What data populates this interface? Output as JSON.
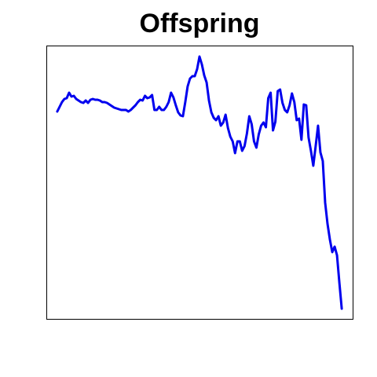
{
  "chart_data": {
    "type": "line",
    "title": "Offspring",
    "color": "#0000ee",
    "xlim": [
      -3.6,
      125.6
    ],
    "ylim": [
      0,
      348
    ],
    "series": [
      {
        "color": "#0000ee",
        "values": [
          264,
          270,
          276,
          280,
          281,
          288,
          283,
          284,
          280,
          278,
          276,
          275,
          278,
          275,
          279,
          280,
          279,
          279,
          278,
          276,
          276,
          275,
          273,
          271,
          269,
          268,
          267,
          266,
          266,
          266,
          264,
          266,
          269,
          272,
          276,
          279,
          278,
          284,
          281,
          282,
          285,
          266,
          266,
          270,
          266,
          266,
          270,
          276,
          288,
          282,
          272,
          263,
          259,
          258,
          276,
          296,
          306,
          309,
          309,
          318,
          334,
          324,
          310,
          301,
          278,
          263,
          256,
          253,
          258,
          246,
          250,
          260,
          243,
          232,
          226,
          211,
          226,
          226,
          214,
          220,
          236,
          258,
          248,
          226,
          218,
          235,
          246,
          250,
          244,
          281,
          288,
          240,
          251,
          290,
          292,
          275,
          266,
          263,
          272,
          287,
          276,
          253,
          255,
          228,
          273,
          272,
          231,
          214,
          195,
          220,
          246,
          212,
          201,
          148,
          121,
          101,
          85,
          92,
          81,
          46,
          13
        ]
      }
    ]
  }
}
